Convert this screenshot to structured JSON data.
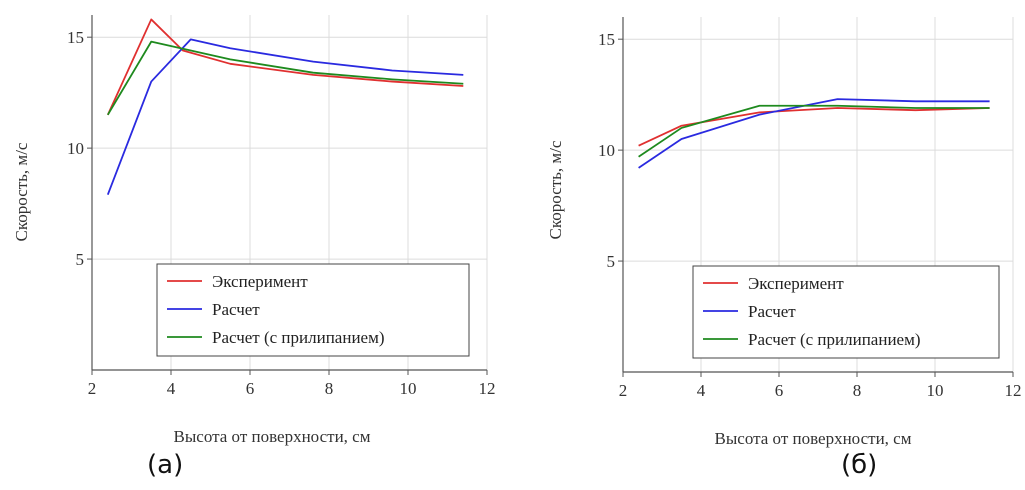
{
  "panels": [
    {
      "caption": "(а)"
    },
    {
      "caption": "(б)"
    }
  ],
  "chart_data": [
    {
      "type": "line",
      "xlabel": "Высота от поверхности, см",
      "ylabel": "Скорость, м/с",
      "xlim": [
        2,
        12
      ],
      "ylim": [
        0,
        16
      ],
      "xticks": [
        2,
        4,
        6,
        8,
        10,
        12
      ],
      "yticks": [
        5,
        10,
        15
      ],
      "grid": true,
      "legend_position": "bottom-right",
      "series": [
        {
          "name": "Эксперимент",
          "color": "#e03030",
          "x": [
            2.4,
            3.5,
            4.3,
            5.5,
            7.6,
            9.6,
            11.4
          ],
          "y": [
            11.5,
            15.8,
            14.4,
            13.8,
            13.3,
            13.0,
            12.8
          ]
        },
        {
          "name": "Расчет",
          "color": "#2a2ae0",
          "x": [
            2.4,
            3.5,
            4.5,
            5.5,
            7.6,
            9.6,
            11.4
          ],
          "y": [
            7.9,
            13.0,
            14.9,
            14.5,
            13.9,
            13.5,
            13.3
          ]
        },
        {
          "name": "Расчет (с прилипанием)",
          "color": "#1e8a1e",
          "x": [
            2.4,
            3.5,
            4.5,
            5.5,
            7.6,
            9.6,
            11.4
          ],
          "y": [
            11.5,
            14.8,
            14.4,
            14.0,
            13.4,
            13.1,
            12.9
          ]
        }
      ]
    },
    {
      "type": "line",
      "xlabel": "Высота от поверхности, см",
      "ylabel": "Скорость, м/с",
      "xlim": [
        2,
        12
      ],
      "ylim": [
        0,
        16
      ],
      "xticks": [
        2,
        4,
        6,
        8,
        10,
        12
      ],
      "yticks": [
        5,
        10,
        15
      ],
      "grid": true,
      "legend_position": "bottom-right",
      "series": [
        {
          "name": "Эксперимент",
          "color": "#e03030",
          "x": [
            2.4,
            3.5,
            5.5,
            7.5,
            9.5,
            11.4
          ],
          "y": [
            10.2,
            11.1,
            11.7,
            11.9,
            11.8,
            11.9
          ]
        },
        {
          "name": "Расчет",
          "color": "#2a2ae0",
          "x": [
            2.4,
            3.5,
            5.5,
            7.5,
            9.5,
            11.4
          ],
          "y": [
            9.2,
            10.5,
            11.6,
            12.3,
            12.2,
            12.2
          ]
        },
        {
          "name": "Расчет (с прилипанием)",
          "color": "#1e8a1e",
          "x": [
            2.4,
            3.5,
            5.5,
            7.5,
            9.5,
            11.4
          ],
          "y": [
            9.7,
            11.0,
            12.0,
            12.0,
            11.9,
            11.9
          ]
        }
      ]
    }
  ]
}
